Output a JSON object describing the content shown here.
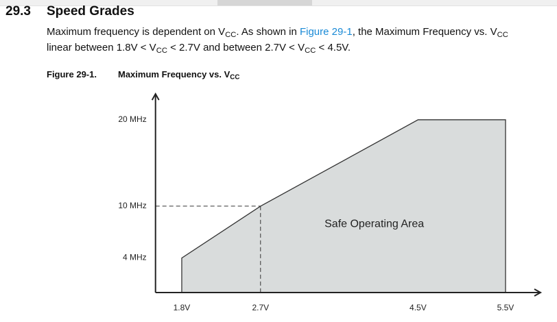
{
  "section": {
    "number": "29.3",
    "title": "Speed Grades"
  },
  "paragraph": {
    "lines": [
      {
        "runs": [
          {
            "text": "Maximum frequency is dependent on V"
          },
          {
            "text": "CC",
            "sub": true
          },
          {
            "text": ". As shown in "
          },
          {
            "text": "Figure 29-1",
            "link": true
          },
          {
            "text": ", the Maximum Frequency vs. V"
          },
          {
            "text": "CC",
            "sub": true
          }
        ]
      },
      {
        "runs": [
          {
            "text": "linear between 1.8V < V"
          },
          {
            "text": "CC",
            "sub": true
          },
          {
            "text": " < 2.7V and between 2.7V < V"
          },
          {
            "text": "CC",
            "sub": true
          },
          {
            "text": " < 4.5V."
          }
        ]
      }
    ]
  },
  "figure": {
    "label": "Figure 29-1.",
    "title_runs": [
      {
        "text": "Maximum Frequency vs. V"
      },
      {
        "text": "CC",
        "sub": true
      }
    ]
  },
  "chart_data": {
    "type": "area",
    "x": [
      1.8,
      2.7,
      4.5,
      5.5
    ],
    "values": [
      4,
      10,
      20,
      20
    ],
    "color": "#d9dcdc",
    "xlim": [
      1.5,
      5.9
    ],
    "ylim": [
      0,
      23
    ],
    "xticks": [
      {
        "value": 1.8,
        "label": "1.8V"
      },
      {
        "value": 2.7,
        "label": "2.7V"
      },
      {
        "value": 4.5,
        "label": "4.5V"
      },
      {
        "value": 5.5,
        "label": "5.5V"
      }
    ],
    "yticks": [
      {
        "value": 4,
        "label": "4 MHz"
      },
      {
        "value": 10,
        "label": "10 MHz"
      },
      {
        "value": 20,
        "label": "20 MHz"
      }
    ],
    "guides": [
      {
        "x": 2.7,
        "y": 10
      }
    ],
    "annotation": {
      "text": "Safe Operating Area",
      "x": 4.0,
      "y": 7.9
    }
  }
}
